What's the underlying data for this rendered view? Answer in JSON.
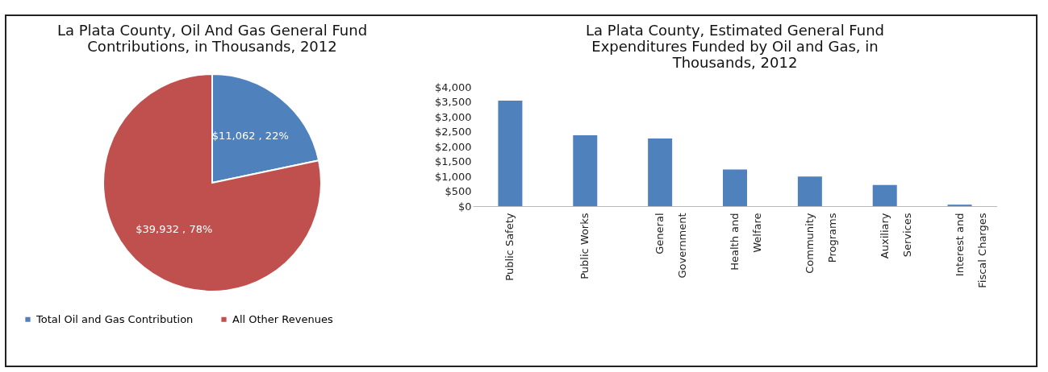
{
  "chart_data": [
    {
      "type": "pie",
      "title": "La Plata County, Oil And Gas General Fund Contributions, in Thousands, 2012",
      "categories": [
        "Total Oil and Gas Contribution",
        "All Other Revenues"
      ],
      "values": [
        11062,
        39932
      ],
      "colors": [
        "#4f81bd",
        "#c0504d"
      ],
      "value_labels": [
        "$11,062 , 22%",
        "$39,932 , 78%"
      ],
      "legend": "bottom"
    },
    {
      "type": "bar",
      "title": "La Plata County, Estimated General Fund Expenditures Funded by Oil and Gas, in Thousands, 2012",
      "categories": [
        "Public Safety",
        "Public Works",
        "General Government",
        "Health and Welfare",
        "Community Programs",
        "Auxiliary Services",
        "Interest and Fiscal Charges"
      ],
      "series": [
        {
          "color": "#4f81bd",
          "values": [
            3540,
            2380,
            2270,
            1230,
            990,
            710,
            50
          ]
        }
      ],
      "ylim": [
        0,
        4000
      ],
      "yticks": [
        {
          "value": 0,
          "label": "$0"
        },
        {
          "value": 500,
          "label": "$500"
        },
        {
          "value": 1000,
          "label": "$1,000"
        },
        {
          "value": 1500,
          "label": "$1,500"
        },
        {
          "value": 2000,
          "label": "$2,000"
        },
        {
          "value": 2500,
          "label": "$2,500"
        },
        {
          "value": 3000,
          "label": "$3,000"
        },
        {
          "value": 3500,
          "label": "$3,500"
        },
        {
          "value": 4000,
          "label": "$4,000"
        }
      ],
      "grid": false,
      "legend": false
    }
  ]
}
